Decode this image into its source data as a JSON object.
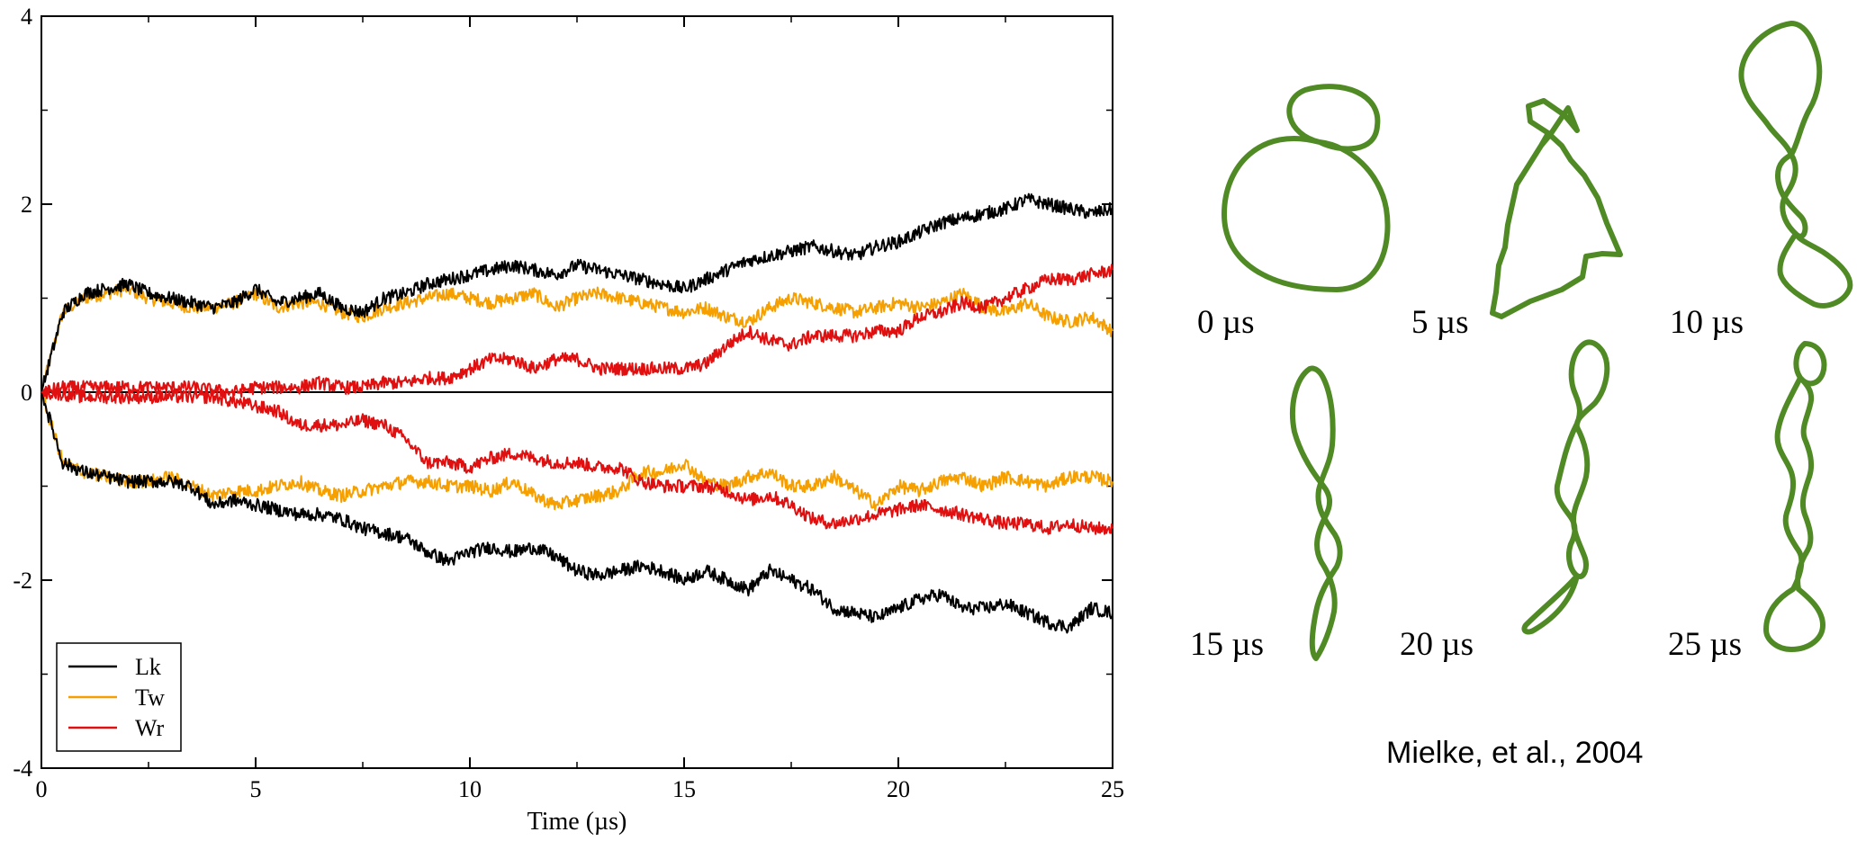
{
  "chart_data": {
    "type": "line",
    "xlabel": "Time (µs)",
    "ylabel": "",
    "title": "",
    "xlim": [
      0,
      25
    ],
    "ylim": [
      -4,
      4
    ],
    "xticks": [
      "0",
      "5",
      "10",
      "15",
      "20",
      "25"
    ],
    "yticks": [
      "-4",
      "-2",
      "0",
      "2",
      "4"
    ],
    "grid": false,
    "legend_position": "bottom-left",
    "x": [
      0,
      0.5,
      1,
      1.5,
      2,
      2.5,
      3,
      3.5,
      4,
      4.5,
      5,
      5.5,
      6,
      6.5,
      7,
      7.5,
      8,
      8.5,
      9,
      9.5,
      10,
      10.5,
      11,
      11.5,
      12,
      12.5,
      13,
      13.5,
      14,
      14.5,
      15,
      15.5,
      16,
      16.5,
      17,
      17.5,
      18,
      18.5,
      19,
      19.5,
      20,
      20.5,
      21,
      21.5,
      22,
      22.5,
      23,
      23.5,
      24,
      24.5,
      25
    ],
    "series": [
      {
        "name": "Lk",
        "color": "#000000",
        "group": "positive",
        "values": [
          0,
          0.85,
          1.05,
          1.1,
          1.15,
          1.05,
          1.0,
          0.95,
          0.9,
          0.95,
          1.1,
          0.95,
          1.0,
          1.05,
          0.9,
          0.85,
          1.0,
          1.05,
          1.15,
          1.2,
          1.25,
          1.3,
          1.35,
          1.3,
          1.25,
          1.35,
          1.3,
          1.25,
          1.2,
          1.15,
          1.1,
          1.2,
          1.3,
          1.4,
          1.45,
          1.5,
          1.55,
          1.5,
          1.45,
          1.55,
          1.6,
          1.7,
          1.8,
          1.85,
          1.9,
          1.95,
          2.05,
          2.0,
          1.95,
          1.9,
          1.95
        ]
      },
      {
        "name": "Tw",
        "color": "#f5a000",
        "group": "positive",
        "values": [
          0,
          0.85,
          1.0,
          1.05,
          1.1,
          1.0,
          0.95,
          0.9,
          0.9,
          0.95,
          1.05,
          0.9,
          0.95,
          0.95,
          0.85,
          0.8,
          0.9,
          0.95,
          1.0,
          1.05,
          1.0,
          0.95,
          1.0,
          1.05,
          0.9,
          1.0,
          1.05,
          1.0,
          0.95,
          0.9,
          0.85,
          0.9,
          0.8,
          0.75,
          0.9,
          1.0,
          0.95,
          0.9,
          0.85,
          0.9,
          0.95,
          0.9,
          0.95,
          1.05,
          0.9,
          0.85,
          0.95,
          0.8,
          0.75,
          0.8,
          0.65
        ]
      },
      {
        "name": "Wr",
        "color": "#e01010",
        "group": "positive",
        "values": [
          0,
          0.05,
          0.05,
          0.05,
          0.05,
          0.05,
          0.05,
          0.05,
          0.02,
          0.0,
          0.05,
          0.05,
          0.05,
          0.1,
          0.05,
          0.05,
          0.1,
          0.1,
          0.15,
          0.15,
          0.25,
          0.35,
          0.35,
          0.25,
          0.35,
          0.35,
          0.25,
          0.25,
          0.25,
          0.25,
          0.25,
          0.3,
          0.5,
          0.65,
          0.55,
          0.5,
          0.6,
          0.6,
          0.6,
          0.65,
          0.65,
          0.8,
          0.85,
          0.95,
          0.9,
          1.0,
          1.1,
          1.2,
          1.2,
          1.25,
          1.3
        ]
      },
      {
        "name": "Lk",
        "color": "#000000",
        "group": "negative",
        "values": [
          0,
          -0.75,
          -0.85,
          -0.9,
          -0.95,
          -0.95,
          -0.95,
          -1.0,
          -1.2,
          -1.15,
          -1.2,
          -1.25,
          -1.3,
          -1.3,
          -1.35,
          -1.45,
          -1.5,
          -1.55,
          -1.7,
          -1.8,
          -1.7,
          -1.65,
          -1.7,
          -1.65,
          -1.75,
          -1.9,
          -1.95,
          -1.9,
          -1.85,
          -1.9,
          -2.0,
          -1.9,
          -2.0,
          -2.1,
          -1.9,
          -2.0,
          -2.1,
          -2.3,
          -2.35,
          -2.4,
          -2.3,
          -2.2,
          -2.15,
          -2.3,
          -2.3,
          -2.25,
          -2.35,
          -2.45,
          -2.5,
          -2.3,
          -2.35
        ]
      },
      {
        "name": "Tw",
        "color": "#f5a000",
        "group": "negative",
        "values": [
          0,
          -0.75,
          -0.85,
          -0.9,
          -0.95,
          -0.95,
          -0.9,
          -1.0,
          -1.1,
          -1.05,
          -1.05,
          -1.0,
          -0.95,
          -1.05,
          -1.1,
          -1.05,
          -1.0,
          -0.95,
          -0.95,
          -1.0,
          -1.0,
          -1.05,
          -0.95,
          -1.1,
          -1.2,
          -1.15,
          -1.1,
          -1.05,
          -0.85,
          -0.85,
          -0.75,
          -0.95,
          -1.0,
          -0.9,
          -0.85,
          -1.0,
          -1.0,
          -0.9,
          -1.05,
          -1.2,
          -1.0,
          -1.05,
          -0.95,
          -0.9,
          -1.0,
          -0.9,
          -0.95,
          -1.0,
          -0.9,
          -0.9,
          -0.95
        ]
      },
      {
        "name": "Wr",
        "color": "#e01010",
        "group": "negative",
        "values": [
          0,
          -0.02,
          -0.05,
          -0.05,
          -0.05,
          -0.05,
          -0.05,
          -0.05,
          -0.05,
          -0.1,
          -0.15,
          -0.2,
          -0.35,
          -0.35,
          -0.35,
          -0.3,
          -0.35,
          -0.5,
          -0.75,
          -0.75,
          -0.8,
          -0.7,
          -0.65,
          -0.7,
          -0.75,
          -0.75,
          -0.8,
          -0.8,
          -0.95,
          -1.0,
          -1.0,
          -1.0,
          -1.05,
          -1.15,
          -1.1,
          -1.2,
          -1.35,
          -1.4,
          -1.35,
          -1.3,
          -1.25,
          -1.2,
          -1.25,
          -1.3,
          -1.35,
          -1.4,
          -1.4,
          -1.45,
          -1.4,
          -1.45,
          -1.45
        ]
      }
    ],
    "legend": [
      {
        "label": "Lk",
        "color": "#000000"
      },
      {
        "label": "Tw",
        "color": "#f5a000"
      },
      {
        "label": "Wr",
        "color": "#e01010"
      }
    ]
  },
  "snapshots": {
    "labels": [
      "0 µs",
      "5 µs",
      "10 µs",
      "15 µs",
      "20 µs",
      "25 µs"
    ],
    "color": "#4f8a25"
  },
  "citation": "Mielke, et al., 2004"
}
